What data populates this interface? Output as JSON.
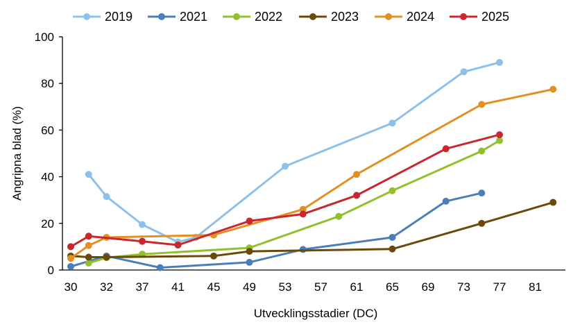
{
  "chart_data": {
    "type": "line",
    "xlabel": "Utvecklingsstadier (DC)",
    "ylabel": "Angripna blad (%)",
    "ylim": [
      0,
      100
    ],
    "yticks": [
      0,
      20,
      40,
      60,
      80,
      100
    ],
    "xlim": [
      29,
      85
    ],
    "xticks": [
      30,
      32,
      37,
      41,
      45,
      49,
      53,
      57,
      61,
      65,
      69,
      73,
      77,
      81
    ],
    "x_scale": "ordinal-stages",
    "grid": false,
    "legend_position": "top",
    "series": [
      {
        "name": "2019",
        "color": "#8DC0EA",
        "points": [
          [
            31,
            41
          ],
          [
            32,
            31.5
          ],
          [
            37,
            19.5
          ],
          [
            41,
            12
          ],
          [
            43,
            14
          ],
          [
            53,
            44.5
          ],
          [
            65,
            63
          ],
          [
            73,
            85
          ],
          [
            77,
            89
          ]
        ]
      },
      {
        "name": "2021",
        "color": "#4A7EBB",
        "points": [
          [
            30,
            1.5
          ],
          [
            32,
            6
          ],
          [
            39,
            1
          ],
          [
            49,
            3.3
          ],
          [
            55,
            8.8
          ],
          [
            65,
            14
          ],
          [
            71,
            29.5
          ],
          [
            75,
            33
          ]
        ]
      },
      {
        "name": "2022",
        "color": "#92C02C",
        "points": [
          [
            31,
            3
          ],
          [
            32,
            5.3
          ],
          [
            37,
            6.8
          ],
          [
            49,
            9.5
          ],
          [
            59,
            23
          ],
          [
            65,
            34
          ],
          [
            75,
            51
          ],
          [
            77,
            55.5
          ]
        ]
      },
      {
        "name": "2023",
        "color": "#6A4A0B",
        "points": [
          [
            30,
            6
          ],
          [
            31,
            5.5
          ],
          [
            32,
            5.5
          ],
          [
            45,
            6
          ],
          [
            49,
            8
          ],
          [
            65,
            9
          ],
          [
            75,
            20
          ],
          [
            83,
            29
          ]
        ]
      },
      {
        "name": "2024",
        "color": "#E28F24",
        "points": [
          [
            30,
            5
          ],
          [
            31,
            10.5
          ],
          [
            32,
            14
          ],
          [
            45,
            15
          ],
          [
            55,
            26
          ],
          [
            61,
            41
          ],
          [
            75,
            71
          ],
          [
            83,
            77.5
          ]
        ]
      },
      {
        "name": "2025",
        "color": "#C8282D",
        "points": [
          [
            30,
            10
          ],
          [
            31,
            14.5
          ],
          [
            37,
            12.3
          ],
          [
            41,
            10.7
          ],
          [
            49,
            21
          ],
          [
            55,
            24
          ],
          [
            61,
            32
          ],
          [
            71,
            52
          ],
          [
            77,
            58
          ]
        ]
      }
    ]
  }
}
